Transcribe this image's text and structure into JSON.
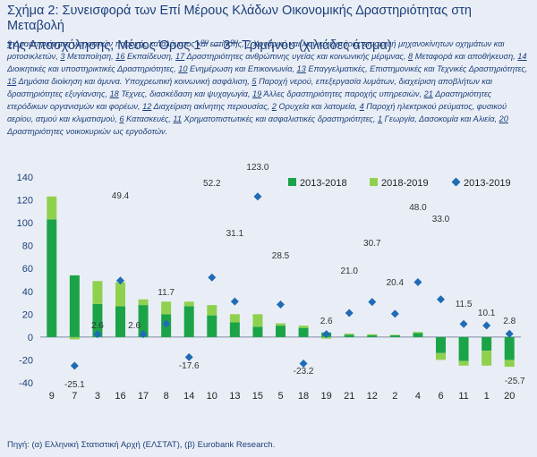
{
  "title_parts": {
    "line1": "Σχήμα 2: Συνεισφορά των Επί Μέρους Κλάδων Οικονομικής Δραστηριότητας στη Μεταβολή",
    "line2_pre": "της Απασχόλησης, Μέσος Όρος 1",
    "sup1": "ου",
    "mid": " – 3",
    "sup2": "ου",
    "line2_post": " Τριμήνου (χιλιάδες άτομα)"
  },
  "sector_legend": [
    {
      "num": "9",
      "text": "Δραστηριότητες υπηρεσιών παροχής καταλύματος και εστίασης,"
    },
    {
      "num": "7",
      "text": "Χονδρικό και λιανικό εμπόριο, επισκευή μηχανοκίνητων οχημάτων και μοτοσικλετών,"
    },
    {
      "num": "3",
      "text": "Μεταποίηση,"
    },
    {
      "num": "16",
      "text": "Εκπαίδευση,"
    },
    {
      "num": "17",
      "text": "Δραστηριότητες ανθρώπινης υγείας και κοινωνικής μέριμνας,"
    },
    {
      "num": "8",
      "text": "Μεταφορά και αποθήκευση,"
    },
    {
      "num": "14",
      "text": "Διοικητικές και υποστηρικτικές Δραστηριότητες,"
    },
    {
      "num": "10",
      "text": "Ενημέρωση και Επικοινωνία,"
    },
    {
      "num": "13",
      "text": "Επαγγελματικές, Επιστημονικές και Τεχνικές Δραστηριότητες,"
    },
    {
      "num": "15",
      "text": "Δημόσια διοίκηση και άμυνα. Υποχρεωτική κοινωνική ασφάλιση,"
    },
    {
      "num": "5",
      "text": "Παροχή νερού, επεξεργασία λυμάτων, διαχείριση αποβλήτων και δραστηριότητες εξυγίανσης,"
    },
    {
      "num": "18",
      "text": "Τέχνες, διασκέδαση και ψυχαγωγία,"
    },
    {
      "num": "19",
      "text": "Άλλες δραστηριότητες παροχής υπηρεσιών,"
    },
    {
      "num": "21",
      "text": "Δραστηριότητες ετερόδικων οργανισμών και φορέων,"
    },
    {
      "num": "12",
      "text": "Διαχείριση ακίνητης περιουσίας,"
    },
    {
      "num": "2",
      "text": "Ορυχεία και λατομεία,"
    },
    {
      "num": "4",
      "text": "Παροχή ηλεκτρικού ρεύματος, φυσικού αερίου, ατμού και κλιματισμού,"
    },
    {
      "num": "6",
      "text": "Κατασκευές,"
    },
    {
      "num": "11",
      "text": "Χρηματοπιστωτικές και ασφαλιστικές δραστηριότητες,"
    },
    {
      "num": "1",
      "text": "Γεωργία, Δασοκομία και Αλιεία,"
    },
    {
      "num": "20",
      "text": "Δραστηριότητες νοικοκυριών ως εργοδοτών."
    }
  ],
  "source": "Πηγή: (α) Ελληνική Στατιστική Αρχή (ΕΛΣΤΑΤ), (β) Eurobank Research.",
  "colors": {
    "bar_2013_2018": "#1aa447",
    "bar_2018_2019": "#8fd14f",
    "marker_2013_2019": "#1f6bb4",
    "text": "#1c3f7a",
    "background": "#e9eef6"
  },
  "chart_data": {
    "type": "bar",
    "categories": [
      "9",
      "7",
      "3",
      "16",
      "17",
      "8",
      "14",
      "10",
      "13",
      "15",
      "5",
      "18",
      "19",
      "21",
      "12",
      "2",
      "4",
      "6",
      "11",
      "1",
      "20"
    ],
    "series": [
      {
        "name": "2013-2018",
        "kind": "stacked-bar",
        "values": [
          103,
          54,
          29,
          27,
          28,
          20,
          27,
          19,
          13,
          9,
          10,
          8,
          4,
          2,
          1.5,
          1.5,
          3.5,
          -14,
          -21,
          -12,
          -20
        ]
      },
      {
        "name": "2018-2019",
        "kind": "stacked-bar",
        "values": [
          20,
          -2,
          20,
          21,
          5,
          11,
          4,
          9,
          7,
          11,
          2,
          2,
          -1.4,
          1,
          1,
          0.5,
          1,
          -6,
          -4,
          -13,
          -6
        ]
      },
      {
        "name": "2013-2019",
        "kind": "marker",
        "values": [
          null,
          -25.1,
          2.6,
          49.4,
          2.6,
          11.7,
          -17.6,
          52.2,
          31.1,
          123.0,
          28.5,
          -23.2,
          2.6,
          21.0,
          30.7,
          20.4,
          48.0,
          33.0,
          11.5,
          10.1,
          2.8
        ]
      }
    ],
    "value_labels": [
      "",
      "-25.1",
      "2.6",
      "49.4",
      "2.6",
      "11.7",
      "-17.6",
      "52.2",
      "31.1",
      "123.0",
      "28.5",
      "-23.2",
      "2.6",
      "21.0",
      "30.7",
      "20.4",
      "48.0",
      "33.0",
      "11.5",
      "10.1",
      "2.8"
    ],
    "extra_label": "-25.7",
    "ylim": [
      -40,
      140
    ],
    "yticks": [
      "140",
      "120",
      "100",
      "80",
      "60",
      "40",
      "20",
      "0",
      "-20",
      "-40"
    ],
    "grid": false,
    "legend_position": "top-right"
  }
}
